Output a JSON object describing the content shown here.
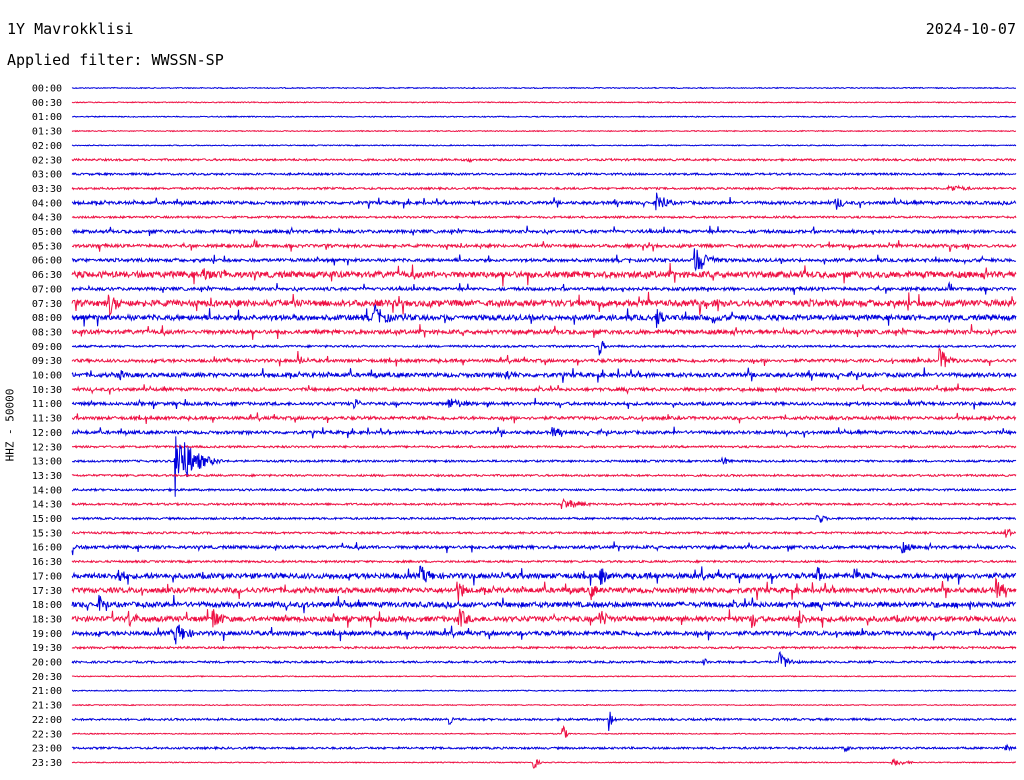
{
  "header": {
    "station": "1Y Mavrokklisi",
    "date": "2024-10-07",
    "filter": "Applied filter: WWSSN-SP"
  },
  "chart_data": {
    "type": "line",
    "title": "1Y Mavrokklisi",
    "ylabel": "HHZ - 50000",
    "colors": [
      "#0000dd",
      "#ee1144"
    ],
    "rows": [
      "00:00",
      "00:30",
      "01:00",
      "01:30",
      "02:00",
      "02:30",
      "03:00",
      "03:30",
      "04:00",
      "04:30",
      "05:00",
      "05:30",
      "06:00",
      "06:30",
      "07:00",
      "07:30",
      "08:00",
      "08:30",
      "09:00",
      "09:30",
      "10:00",
      "10:30",
      "11:00",
      "11:30",
      "12:00",
      "12:30",
      "13:00",
      "13:30",
      "14:00",
      "14:30",
      "15:00",
      "15:30",
      "16:00",
      "16:30",
      "17:00",
      "17:30",
      "18:00",
      "18:30",
      "19:00",
      "19:30",
      "20:00",
      "20:30",
      "21:00",
      "21:30",
      "22:00",
      "22:30",
      "23:00",
      "23:30"
    ],
    "noise_level": [
      1,
      1,
      1,
      1,
      1,
      2,
      2,
      2,
      3,
      2,
      3,
      3,
      3,
      6,
      3,
      6,
      5,
      4,
      2,
      3,
      4,
      3,
      3,
      3,
      3,
      2,
      2,
      2,
      2,
      2,
      2,
      2,
      3,
      2,
      5,
      5,
      5,
      5,
      4,
      2,
      2,
      1,
      1,
      1,
      2,
      1,
      2,
      1
    ],
    "events": [
      {
        "row": 2.5,
        "t": 0.42,
        "amp": 3,
        "dur": 0.02
      },
      {
        "row": 3.5,
        "t": 0.93,
        "amp": 4,
        "dur": 0.06
      },
      {
        "row": 4,
        "t": 0.62,
        "amp": 12,
        "dur": 0.03
      },
      {
        "row": 4,
        "t": 0.81,
        "amp": 8,
        "dur": 0.02
      },
      {
        "row": 6,
        "t": 0.66,
        "amp": 14,
        "dur": 0.05
      },
      {
        "row": 6.5,
        "t": 0.14,
        "amp": 8,
        "dur": 0.03
      },
      {
        "row": 6.5,
        "t": 0.16,
        "amp": 7,
        "dur": 0.03
      },
      {
        "row": 7.5,
        "t": 0.04,
        "amp": 12,
        "dur": 0.03
      },
      {
        "row": 8,
        "t": 0.32,
        "amp": 14,
        "dur": 0.04
      },
      {
        "row": 8,
        "t": 0.62,
        "amp": 12,
        "dur": 0.02
      },
      {
        "row": 8,
        "t": 0.68,
        "amp": 6,
        "dur": 0.03
      },
      {
        "row": 9,
        "t": 0.56,
        "amp": 10,
        "dur": 0.01
      },
      {
        "row": 9.5,
        "t": 0.24,
        "amp": 10,
        "dur": 0.01
      },
      {
        "row": 9.5,
        "t": 0.92,
        "amp": 12,
        "dur": 0.03
      },
      {
        "row": 10,
        "t": 0.05,
        "amp": 6,
        "dur": 0.03
      },
      {
        "row": 10,
        "t": 0.46,
        "amp": 6,
        "dur": 0.04
      },
      {
        "row": 11,
        "t": 0.3,
        "amp": 7,
        "dur": 0.01
      },
      {
        "row": 11,
        "t": 0.4,
        "amp": 6,
        "dur": 0.06
      },
      {
        "row": 12,
        "t": 0.51,
        "amp": 6,
        "dur": 0.03
      },
      {
        "row": 13,
        "t": 0.11,
        "amp": 36,
        "dur": 0.05
      },
      {
        "row": 13,
        "t": 0.69,
        "amp": 5,
        "dur": 0.02
      },
      {
        "row": 14.5,
        "t": 0.52,
        "amp": 6,
        "dur": 0.06
      },
      {
        "row": 15,
        "t": 0.79,
        "amp": 7,
        "dur": 0.02
      },
      {
        "row": 15.5,
        "t": 0.99,
        "amp": 10,
        "dur": 0.01
      },
      {
        "row": 16,
        "t": 0.0,
        "amp": 12,
        "dur": 0.01
      },
      {
        "row": 16,
        "t": 0.88,
        "amp": 6,
        "dur": 0.03
      },
      {
        "row": 17,
        "t": 0.05,
        "amp": 10,
        "dur": 0.02
      },
      {
        "row": 17,
        "t": 0.37,
        "amp": 10,
        "dur": 0.04
      },
      {
        "row": 17,
        "t": 0.56,
        "amp": 12,
        "dur": 0.02
      },
      {
        "row": 17,
        "t": 0.79,
        "amp": 10,
        "dur": 0.02
      },
      {
        "row": 17,
        "t": 0.83,
        "amp": 12,
        "dur": 0.01
      },
      {
        "row": 17.5,
        "t": 0.41,
        "amp": 12,
        "dur": 0.02
      },
      {
        "row": 17.5,
        "t": 0.55,
        "amp": 10,
        "dur": 0.02
      },
      {
        "row": 17.5,
        "t": 0.98,
        "amp": 12,
        "dur": 0.02
      },
      {
        "row": 18,
        "t": 0.03,
        "amp": 10,
        "dur": 0.02
      },
      {
        "row": 18.5,
        "t": 0.06,
        "amp": 10,
        "dur": 0.03
      },
      {
        "row": 18.5,
        "t": 0.15,
        "amp": 12,
        "dur": 0.03
      },
      {
        "row": 18.5,
        "t": 0.41,
        "amp": 12,
        "dur": 0.03
      },
      {
        "row": 18.5,
        "t": 0.56,
        "amp": 10,
        "dur": 0.03
      },
      {
        "row": 18.5,
        "t": 0.72,
        "amp": 10,
        "dur": 0.02
      },
      {
        "row": 18.5,
        "t": 0.77,
        "amp": 10,
        "dur": 0.02
      },
      {
        "row": 19,
        "t": 0.11,
        "amp": 12,
        "dur": 0.04
      },
      {
        "row": 20,
        "t": 0.67,
        "amp": 5,
        "dur": 0.01
      },
      {
        "row": 20,
        "t": 0.75,
        "amp": 10,
        "dur": 0.03
      },
      {
        "row": 22,
        "t": 0.4,
        "amp": 6,
        "dur": 0.01
      },
      {
        "row": 22,
        "t": 0.57,
        "amp": 12,
        "dur": 0.01
      },
      {
        "row": 22.5,
        "t": 0.52,
        "amp": 10,
        "dur": 0.01
      },
      {
        "row": 23,
        "t": 0.82,
        "amp": 6,
        "dur": 0.01
      },
      {
        "row": 23,
        "t": 0.99,
        "amp": 6,
        "dur": 0.01
      },
      {
        "row": 23.5,
        "t": 0.49,
        "amp": 8,
        "dur": 0.01
      },
      {
        "row": 23.5,
        "t": 0.87,
        "amp": 4,
        "dur": 0.04
      }
    ]
  }
}
